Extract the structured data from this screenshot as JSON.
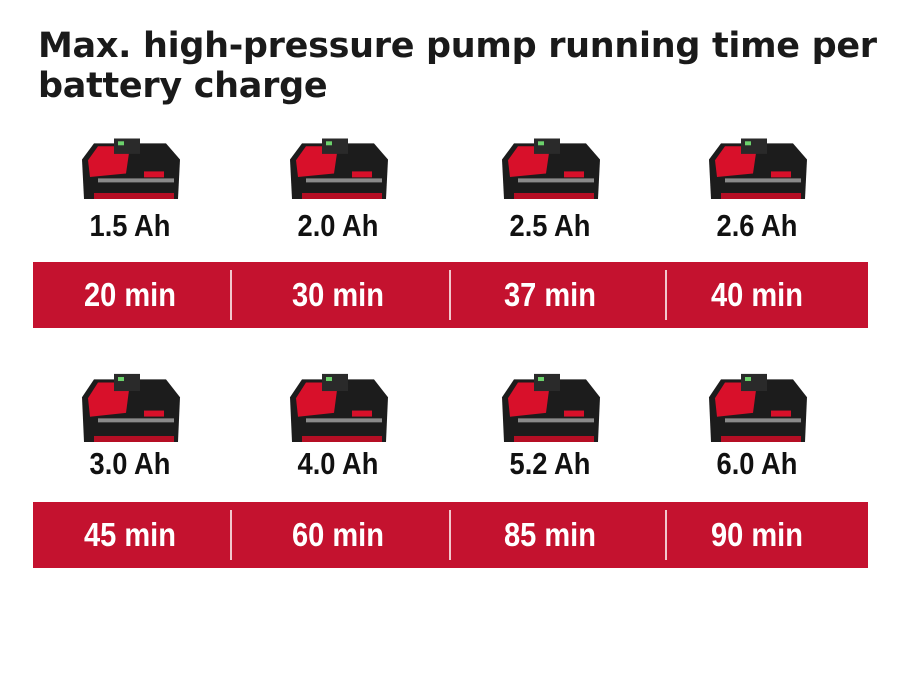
{
  "title": "Max. high-pressure pump running time per battery charge",
  "colors": {
    "band": "#c4122f",
    "battery_red": "#d8102a",
    "battery_black": "#1c1c1c"
  },
  "rows": [
    {
      "items": [
        {
          "capacity": "1.5 Ah",
          "runtime": "20 min",
          "icon": "battery-pack-icon"
        },
        {
          "capacity": "2.0 Ah",
          "runtime": "30 min",
          "icon": "battery-pack-icon"
        },
        {
          "capacity": "2.5 Ah",
          "runtime": "37 min",
          "icon": "battery-pack-icon"
        },
        {
          "capacity": "2.6 Ah",
          "runtime": "40 min",
          "icon": "battery-pack-icon"
        }
      ]
    },
    {
      "items": [
        {
          "capacity": "3.0 Ah",
          "runtime": "45 min",
          "icon": "battery-pack-icon"
        },
        {
          "capacity": "4.0 Ah",
          "runtime": "60 min",
          "icon": "battery-pack-icon"
        },
        {
          "capacity": "5.2 Ah",
          "runtime": "85 min",
          "icon": "battery-pack-icon"
        },
        {
          "capacity": "6.0 Ah",
          "runtime": "90 min",
          "icon": "battery-pack-icon"
        }
      ]
    }
  ]
}
